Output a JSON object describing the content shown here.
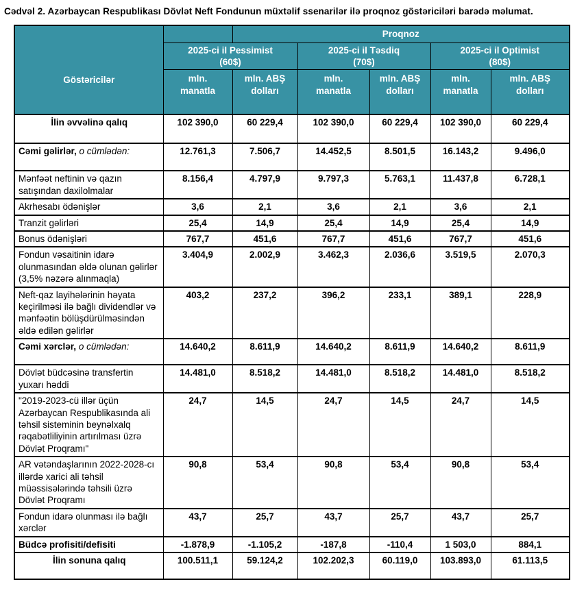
{
  "document": {
    "title": "Cədvəl 2. Azərbaycan Respublikası Dövlət Neft Fondunun müxtəlif ssenarilər ilə proqnoz göstəriciləri barədə məlumat."
  },
  "colors": {
    "header_bg": "#3892A4",
    "header_text": "#FFFFFF"
  },
  "table": {
    "corner_header": "Göstəricilər",
    "top_header": "Proqnoz",
    "scenarios": [
      {
        "title": "2025-ci il Pessimist",
        "price": "(60$)"
      },
      {
        "title": "2025-ci il Təsdiq",
        "price": "(70$)"
      },
      {
        "title": "2025-ci il Optimist",
        "price": "(80$)"
      }
    ],
    "units": [
      "mln.\nmanatla",
      "mln. ABŞ\ndolları"
    ],
    "rows": [
      {
        "style": "total",
        "label": "İlin əvvəlinə qalıq",
        "values": [
          "102 390,0",
          "60 229,4",
          "102 390,0",
          "60 229,4",
          "102 390,0",
          "60 229,4"
        ]
      },
      {
        "style": "section",
        "label": "Cəmi gəlirlər,",
        "label_italic": " o cümlədən:",
        "values": [
          "12.761,3",
          "7.506,7",
          "14.452,5",
          "8.501,5",
          "16.143,2",
          "9.496,0"
        ]
      },
      {
        "style": "item",
        "label": "Mənfəət neftinin və qazın satışından daxilolmalar",
        "values": [
          "8.156,4",
          "4.797,9",
          "9.797,3",
          "5.763,1",
          "11.437,8",
          "6.728,1"
        ]
      },
      {
        "style": "item",
        "label": "Akrhesabı ödənişlər",
        "values": [
          "3,6",
          "2,1",
          "3,6",
          "2,1",
          "3,6",
          "2,1"
        ]
      },
      {
        "style": "item",
        "label": "Tranzit gəlirləri",
        "values": [
          "25,4",
          "14,9",
          "25,4",
          "14,9",
          "25,4",
          "14,9"
        ]
      },
      {
        "style": "item",
        "label": "Bonus ödənişləri",
        "values": [
          "767,7",
          "451,6",
          "767,7",
          "451,6",
          "767,7",
          "451,6"
        ]
      },
      {
        "style": "item",
        "label": "Fondun vəsaitinin idarə olunmasından əldə olunan gəlirlər (3,5% nəzərə alınmaqla)",
        "values": [
          "3.404,9",
          "2.002,9",
          "3.462,3",
          "2.036,6",
          "3.519,5",
          "2.070,3"
        ]
      },
      {
        "style": "item",
        "label": "Neft-qaz layihələrinin həyata keçirilməsi ilə bağlı dividendlər və mənfəətin bölüşdürülməsindən əldə edilən gəlirlər",
        "values": [
          "403,2",
          "237,2",
          "396,2",
          "233,1",
          "389,1",
          "228,9"
        ]
      },
      {
        "style": "section",
        "label": "Cəmi xərclər,",
        "label_italic": " o cümlədən:",
        "values": [
          "14.640,2",
          "8.611,9",
          "14.640,2",
          "8.611,9",
          "14.640,2",
          "8.611,9"
        ]
      },
      {
        "style": "item",
        "label": "Dövlət büdcəsinə transfertin yuxarı həddi",
        "values": [
          "14.481,0",
          "8.518,2",
          "14.481,0",
          "8.518,2",
          "14.481,0",
          "8.518,2"
        ]
      },
      {
        "style": "item",
        "label": "\"2019-2023-cü illər üçün Azərbaycan Respublikasında ali təhsil sisteminin beynəlxalq rəqabətliliyinin artırılması üzrə Dövlət Proqramı\"",
        "values": [
          "24,7",
          "14,5",
          "24,7",
          "14,5",
          "24,7",
          "14,5"
        ]
      },
      {
        "style": "item",
        "label": "AR vətəndaşlarının 2022-2028-cı illərdə xarici ali təhsil müəssisələrində təhsili üzrə Dövlət Proqramı",
        "values": [
          "90,8",
          "53,4",
          "90,8",
          "53,4",
          "90,8",
          "53,4"
        ]
      },
      {
        "style": "item",
        "label": "Fondun idarə olunması ilə bağlı xərclər",
        "values": [
          "43,7",
          "25,7",
          "43,7",
          "25,7",
          "43,7",
          "25,7"
        ]
      },
      {
        "style": "bold",
        "label": "Büdcə profisiti/defisiti",
        "values": [
          "-1.878,9",
          "-1.105,2",
          "-187,8",
          "-110,4",
          "1 503,0",
          "884,1"
        ]
      },
      {
        "style": "total",
        "label": "İlin sonuna qalıq",
        "values": [
          "100.511,1",
          "59.124,2",
          "102.202,3",
          "60.119,0",
          "103.893,0",
          "61.113,5"
        ]
      }
    ]
  }
}
